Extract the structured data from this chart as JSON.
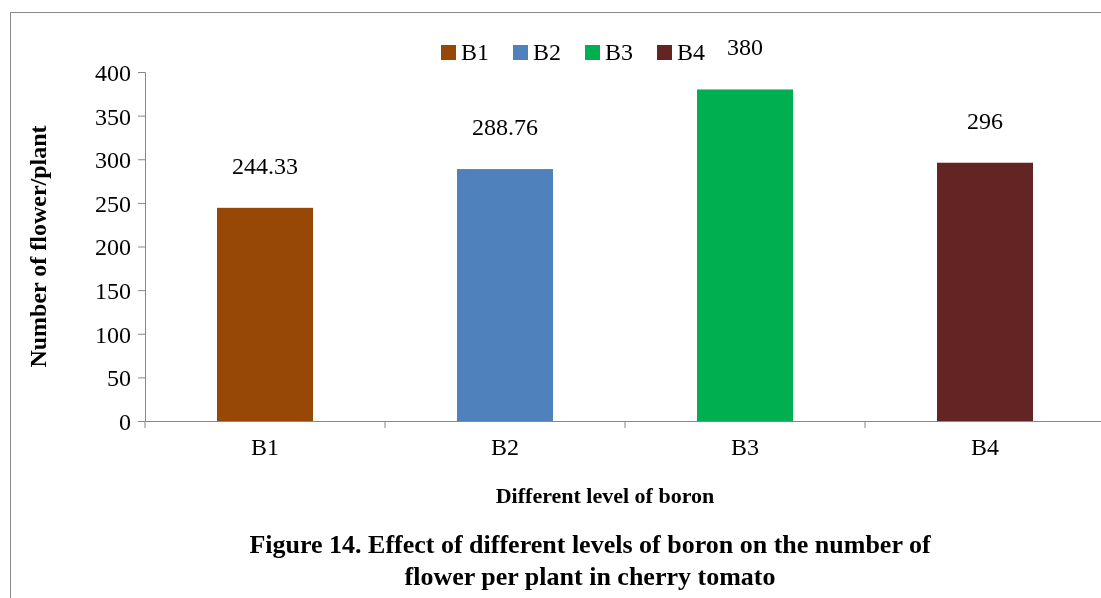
{
  "chart_data": {
    "type": "bar",
    "title": "Figure 14. Effect of different levels of boron on the number of flower per plant in cherry tomato",
    "xlabel": "Different level of boron",
    "ylabel": "Number of flower/plant",
    "categories": [
      "B1",
      "B2",
      "B3",
      "B4"
    ],
    "series": [
      {
        "name": "B1",
        "color": "#974706",
        "values": [
          244.33,
          null,
          null,
          null
        ]
      },
      {
        "name": "B2",
        "color": "#4f81bd",
        "values": [
          null,
          288.76,
          null,
          null
        ]
      },
      {
        "name": "B3",
        "color": "#00b050",
        "values": [
          null,
          null,
          380,
          null
        ]
      },
      {
        "name": "B4",
        "color": "#632523",
        "values": [
          null,
          null,
          null,
          296
        ]
      }
    ],
    "ylim": [
      0,
      400
    ],
    "yticks": [
      0,
      50,
      100,
      150,
      200,
      250,
      300,
      350,
      400
    ],
    "data_labels": true,
    "legend": "top",
    "grid": false
  }
}
